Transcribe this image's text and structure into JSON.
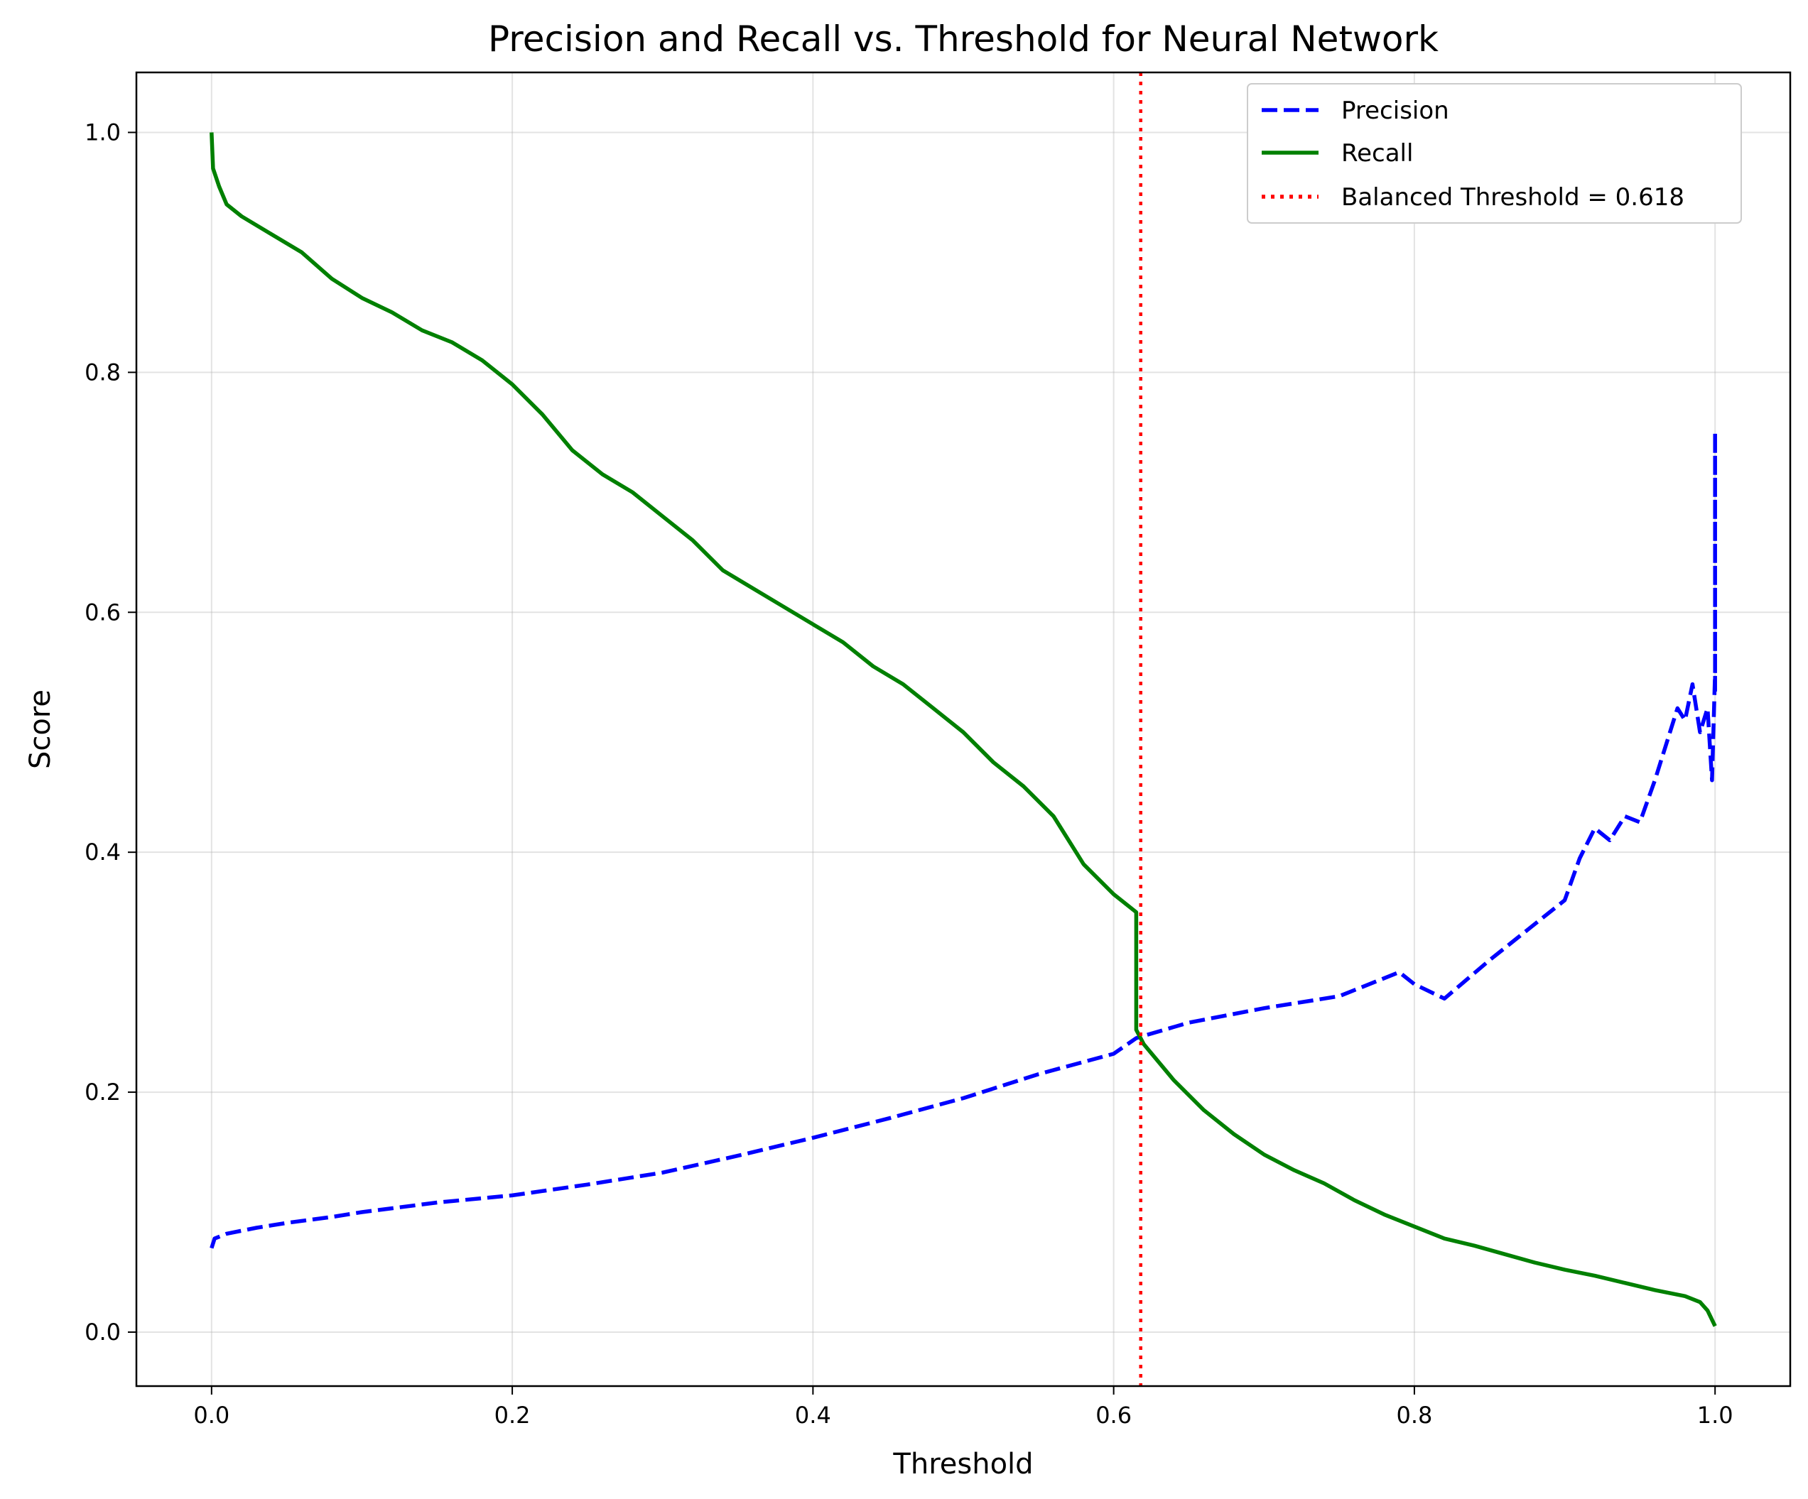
{
  "chart_data": {
    "type": "line",
    "title": "Precision and Recall vs. Threshold for Neural Network",
    "xlabel": "Threshold",
    "ylabel": "Score",
    "xlim": [
      -0.05,
      1.05
    ],
    "ylim": [
      -0.045,
      1.05
    ],
    "xticks": [
      0.0,
      0.2,
      0.4,
      0.6,
      0.8,
      1.0
    ],
    "xtick_labels": [
      "0.0",
      "0.2",
      "0.4",
      "0.6",
      "0.8",
      "1.0"
    ],
    "yticks": [
      0.0,
      0.2,
      0.4,
      0.6,
      0.8,
      1.0
    ],
    "ytick_labels": [
      "0.0",
      "0.2",
      "0.4",
      "0.6",
      "0.8",
      "1.0"
    ],
    "grid": true,
    "legend_position": "top-right",
    "series": [
      {
        "name": "Precision",
        "color": "#0000ff",
        "style": "dashed",
        "x": [
          0.0,
          0.002,
          0.01,
          0.03,
          0.05,
          0.08,
          0.1,
          0.15,
          0.2,
          0.25,
          0.3,
          0.35,
          0.4,
          0.45,
          0.5,
          0.55,
          0.6,
          0.615,
          0.62,
          0.65,
          0.7,
          0.75,
          0.79,
          0.8,
          0.82,
          0.85,
          0.88,
          0.9,
          0.91,
          0.92,
          0.93,
          0.94,
          0.95,
          0.96,
          0.97,
          0.975,
          0.98,
          0.985,
          0.99,
          0.995,
          0.998,
          1.0,
          1.0,
          1.0
        ],
        "y": [
          0.07,
          0.078,
          0.082,
          0.087,
          0.091,
          0.096,
          0.1,
          0.108,
          0.114,
          0.123,
          0.133,
          0.147,
          0.162,
          0.178,
          0.195,
          0.215,
          0.232,
          0.245,
          0.247,
          0.258,
          0.27,
          0.28,
          0.3,
          0.29,
          0.278,
          0.31,
          0.34,
          0.36,
          0.395,
          0.42,
          0.41,
          0.43,
          0.425,
          0.46,
          0.5,
          0.52,
          0.51,
          0.54,
          0.5,
          0.52,
          0.46,
          0.55,
          0.75,
          0.53
        ]
      },
      {
        "name": "Recall",
        "color": "#008000",
        "style": "solid",
        "x": [
          0.0,
          0.001,
          0.005,
          0.01,
          0.02,
          0.04,
          0.06,
          0.08,
          0.1,
          0.12,
          0.14,
          0.16,
          0.18,
          0.2,
          0.22,
          0.24,
          0.26,
          0.28,
          0.3,
          0.32,
          0.34,
          0.36,
          0.38,
          0.4,
          0.42,
          0.44,
          0.46,
          0.48,
          0.5,
          0.52,
          0.54,
          0.56,
          0.58,
          0.6,
          0.615,
          0.615,
          0.62,
          0.64,
          0.66,
          0.68,
          0.7,
          0.72,
          0.74,
          0.76,
          0.78,
          0.8,
          0.82,
          0.84,
          0.86,
          0.88,
          0.9,
          0.92,
          0.94,
          0.96,
          0.98,
          0.99,
          0.995,
          1.0
        ],
        "y": [
          1.0,
          0.97,
          0.955,
          0.94,
          0.93,
          0.915,
          0.9,
          0.878,
          0.862,
          0.85,
          0.835,
          0.825,
          0.81,
          0.79,
          0.765,
          0.735,
          0.715,
          0.7,
          0.68,
          0.66,
          0.635,
          0.62,
          0.605,
          0.59,
          0.575,
          0.555,
          0.54,
          0.52,
          0.5,
          0.475,
          0.455,
          0.43,
          0.39,
          0.365,
          0.35,
          0.252,
          0.24,
          0.21,
          0.185,
          0.165,
          0.148,
          0.135,
          0.124,
          0.11,
          0.098,
          0.088,
          0.078,
          0.072,
          0.065,
          0.058,
          0.052,
          0.047,
          0.041,
          0.035,
          0.03,
          0.025,
          0.018,
          0.005
        ]
      },
      {
        "name": "Balanced Threshold = 0.618",
        "color": "#ff0000",
        "style": "dotted",
        "vline_x": 0.618
      }
    ]
  }
}
